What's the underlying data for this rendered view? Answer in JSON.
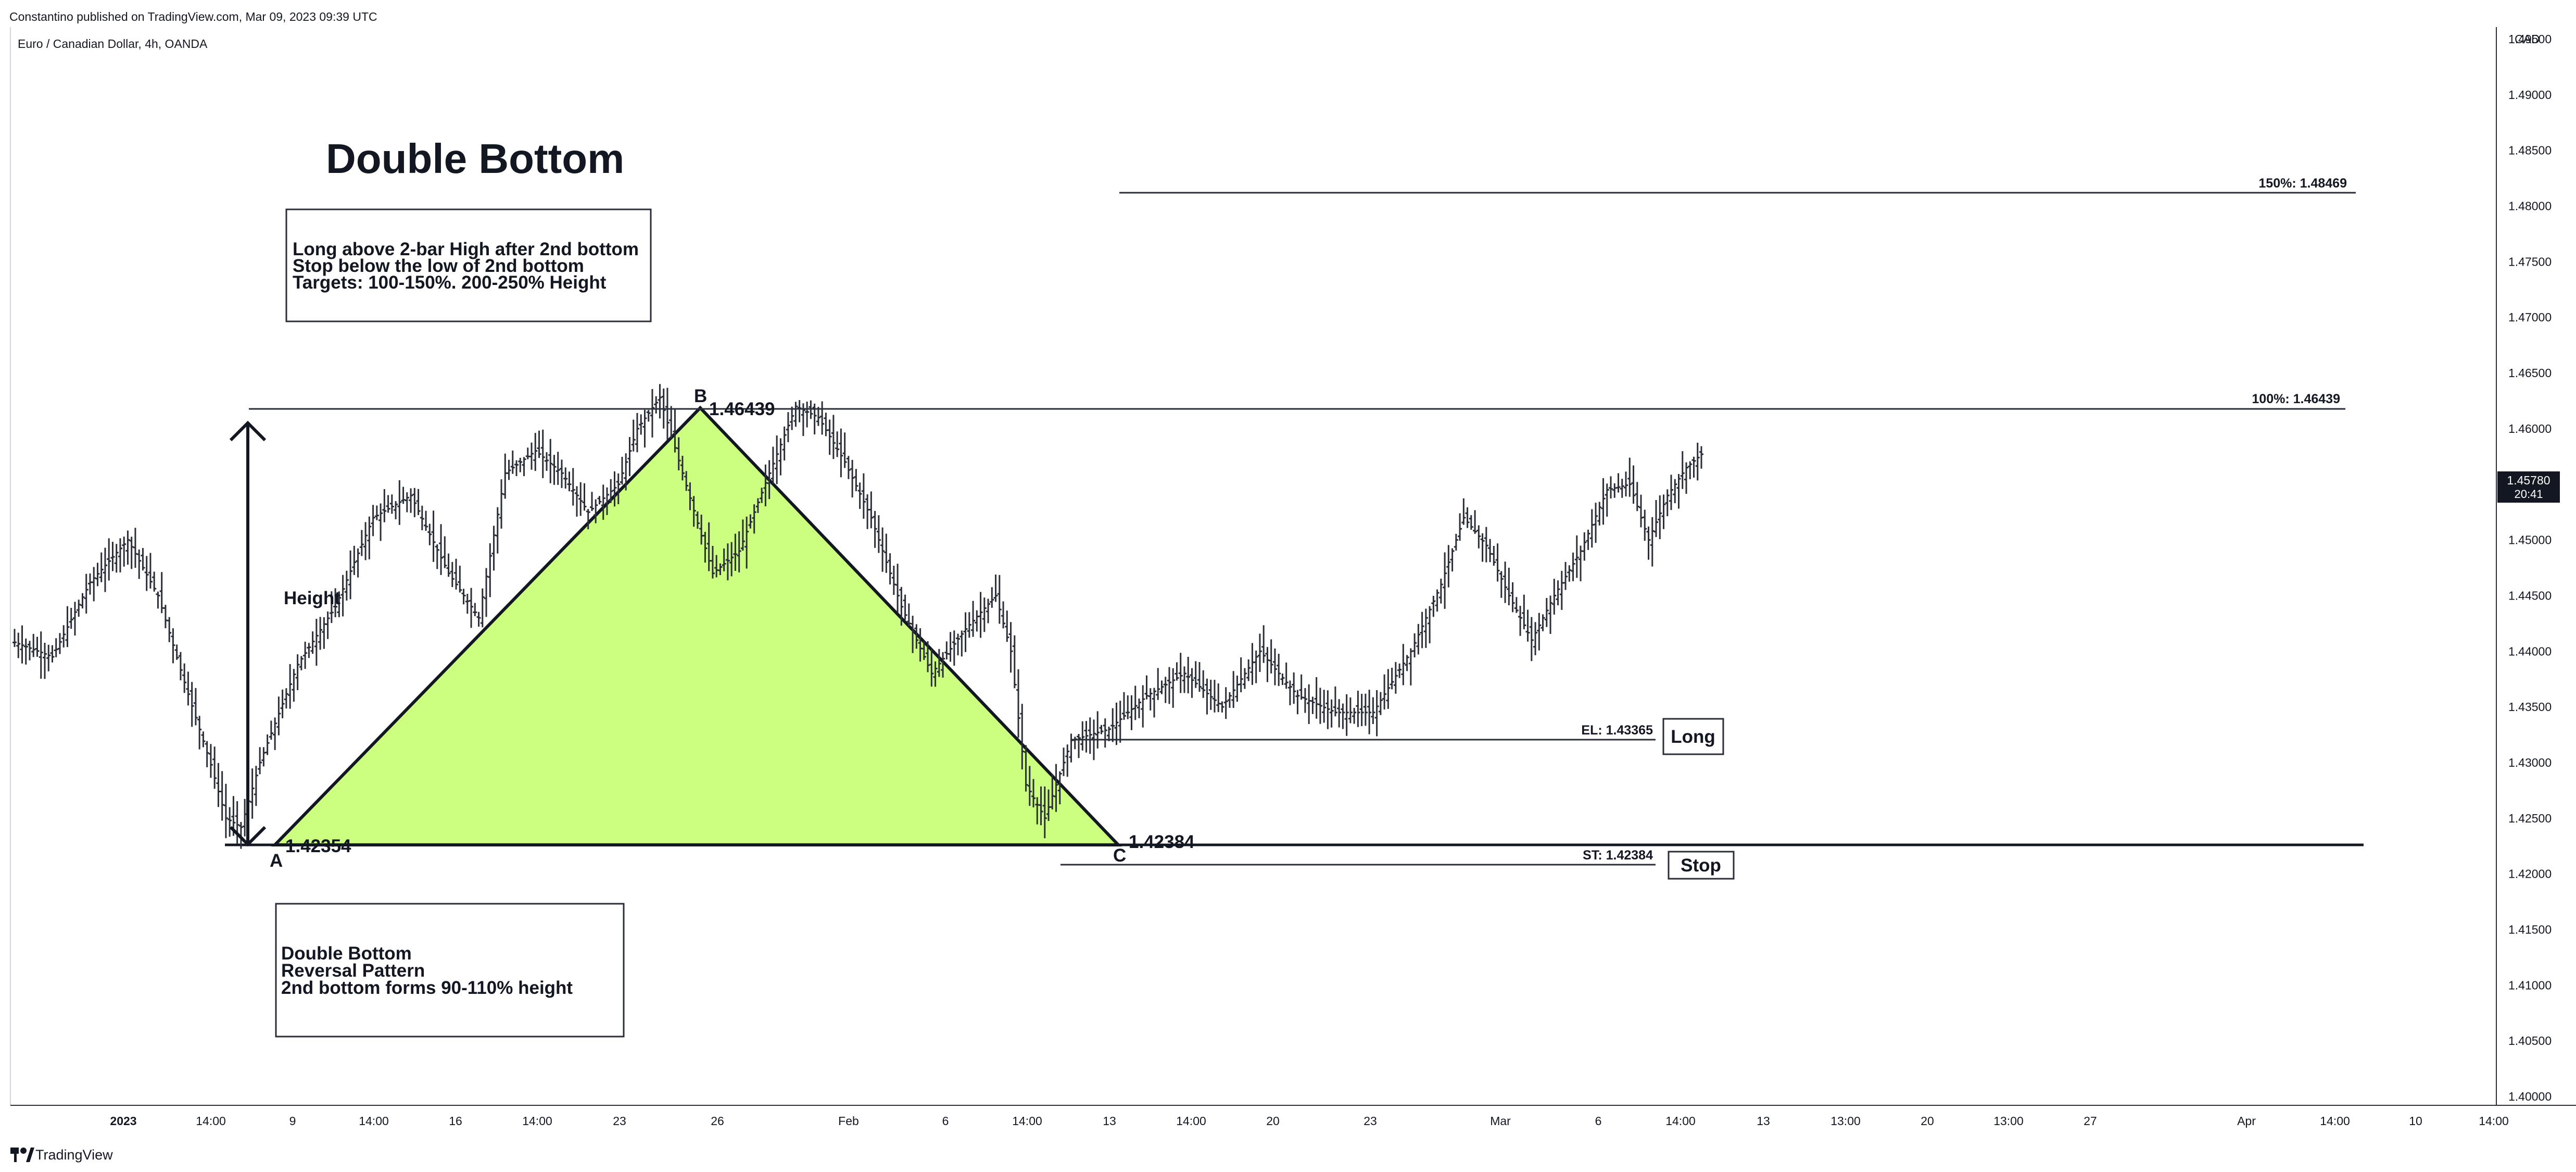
{
  "header": {
    "published": "Constantino published on TradingView.com, Mar 09, 2023 09:39 UTC",
    "symbol": "Euro / Canadian Dollar, 4h, OANDA",
    "currency": "CAD"
  },
  "footer": {
    "brand": "TradingView",
    "logo_icon": "tradingview-logo-icon"
  },
  "last_price": {
    "value": "1.45780",
    "countdown": "20:41",
    "color": "#131722"
  },
  "annotations": {
    "title": "Double Bottom",
    "rules": [
      "Long above 2-bar High after 2nd bottom",
      "Stop below the low of 2nd bottom",
      "Targets: 100-150%. 200-250% Height"
    ],
    "description": [
      "Double Bottom",
      "Reversal Pattern",
      "2nd bottom forms 90-110% height"
    ],
    "height_label": "Height",
    "point_a": "A",
    "point_a_price": "1.42354",
    "point_b": "B",
    "point_b_price": "1.46439",
    "point_c": "C",
    "point_c_price": "1.42384",
    "level_150": "150%: 1.48469",
    "level_100": "100%: 1.46439",
    "level_el": "EL: 1.43365",
    "level_st": "ST: 1.42384",
    "long_label": "Long",
    "stop_label": "Stop",
    "pattern_fill": "#ccff80"
  },
  "chart_data": {
    "type": "ohlc",
    "symbol": "EURCAD",
    "interval": "4h",
    "y_axis": {
      "min": 1.4,
      "max": 1.495,
      "scale": "linear",
      "ticks": [
        "1.49500",
        "1.49000",
        "1.48500",
        "1.48000",
        "1.47500",
        "1.47000",
        "1.46500",
        "1.46000",
        "1.45500",
        "1.45000",
        "1.44500",
        "1.44000",
        "1.43500",
        "1.43000",
        "1.42500",
        "1.42000",
        "1.41500",
        "1.41000",
        "1.40500",
        "1.40000"
      ]
    },
    "x_axis": {
      "ticks": [
        "2023",
        "14:00",
        "9",
        "14:00",
        "16",
        "14:00",
        "23",
        "26",
        "Feb",
        "6",
        "14:00",
        "13",
        "14:00",
        "20",
        "23",
        "Mar",
        "6",
        "14:00",
        "13",
        "13:00",
        "20",
        "13:00",
        "27",
        "Apr",
        "14:00",
        "10",
        "14:00"
      ]
    },
    "price_path": [
      [
        0,
        1.4408
      ],
      [
        10,
        1.4395
      ],
      [
        20,
        1.4462
      ],
      [
        30,
        1.45
      ],
      [
        38,
        1.445
      ],
      [
        45,
        1.4372
      ],
      [
        52,
        1.4298
      ],
      [
        56,
        1.425
      ],
      [
        60,
        1.4242
      ],
      [
        65,
        1.43
      ],
      [
        75,
        1.4388
      ],
      [
        85,
        1.444
      ],
      [
        95,
        1.452
      ],
      [
        105,
        1.454
      ],
      [
        115,
        1.447
      ],
      [
        123,
        1.443
      ],
      [
        130,
        1.456
      ],
      [
        138,
        1.458
      ],
      [
        145,
        1.456
      ],
      [
        152,
        1.4525
      ],
      [
        160,
        1.455
      ],
      [
        165,
        1.46
      ],
      [
        171,
        1.4628
      ],
      [
        177,
        1.456
      ],
      [
        185,
        1.447
      ],
      [
        192,
        1.449
      ],
      [
        200,
        1.456
      ],
      [
        207,
        1.462
      ],
      [
        213,
        1.461
      ],
      [
        220,
        1.457
      ],
      [
        227,
        1.452
      ],
      [
        235,
        1.444
      ],
      [
        243,
        1.438
      ],
      [
        252,
        1.442
      ],
      [
        260,
        1.445
      ],
      [
        264,
        1.44
      ],
      [
        268,
        1.428
      ],
      [
        273,
        1.425
      ],
      [
        280,
        1.432
      ],
      [
        290,
        1.433
      ],
      [
        300,
        1.436
      ],
      [
        310,
        1.438
      ],
      [
        320,
        1.435
      ],
      [
        330,
        1.44
      ],
      [
        340,
        1.436
      ],
      [
        350,
        1.4345
      ],
      [
        360,
        1.4345
      ],
      [
        370,
        1.44
      ],
      [
        378,
        1.446
      ],
      [
        384,
        1.452
      ],
      [
        390,
        1.4495
      ],
      [
        396,
        1.445
      ],
      [
        402,
        1.441
      ],
      [
        408,
        1.445
      ],
      [
        415,
        1.449
      ],
      [
        422,
        1.4545
      ],
      [
        428,
        1.455
      ],
      [
        433,
        1.45
      ],
      [
        438,
        1.454
      ],
      [
        443,
        1.4565
      ],
      [
        447,
        1.4577
      ]
    ],
    "candle_count": 448,
    "last_close": 1.4578
  }
}
